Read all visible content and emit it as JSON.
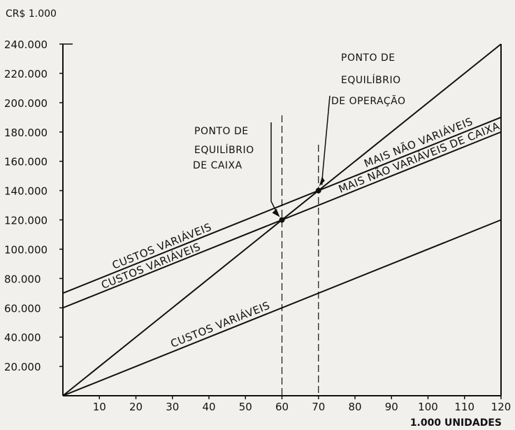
{
  "chart_data": {
    "type": "line",
    "ylabel": "CR$ 1.000",
    "xlabel": "1.000 UNIDADES",
    "xlim": [
      0,
      120
    ],
    "ylim": [
      0,
      240000
    ],
    "x_ticks": [
      10,
      20,
      30,
      40,
      50,
      60,
      70,
      80,
      90,
      100,
      110,
      120
    ],
    "y_tick_values": [
      20000,
      40000,
      60000,
      80000,
      100000,
      120000,
      140000,
      160000,
      180000,
      200000,
      220000,
      240000
    ],
    "y_tick_labels": [
      "20.000",
      "40.000",
      "60.000",
      "80.000",
      "100.000",
      "120.000",
      "140.000",
      "160.000",
      "180.000",
      "200.000",
      "220.000",
      "240.000"
    ],
    "grid": false,
    "series": [
      {
        "x": [
          0,
          120
        ],
        "y": [
          0,
          240000
        ]
      },
      {
        "name": "CUSTOS VARIÁVEIS MAIS NÃO VARIÁVEIS",
        "x": [
          0,
          120
        ],
        "y": [
          70000,
          190000
        ]
      },
      {
        "name": "CUSTOS VARIÁVEIS MAIS NÃO VARIÁVEIS DE CAIXA",
        "x": [
          0,
          120
        ],
        "y": [
          60000,
          180000
        ]
      },
      {
        "name": "CUSTOS VARIÁVEIS",
        "x": [
          0,
          120
        ],
        "y": [
          0,
          120000
        ]
      }
    ],
    "line_labels": {
      "top_left": "CUSTOS VARIÁVEIS",
      "top_right": "MAIS NÃO VARIÁVEIS",
      "middle_left": "CUSTOS VARIÁVEIS",
      "middle_right": "MAIS NÃO VARIÁVEIS DE CAIXA",
      "bottom": "CUSTOS VARIÁVEIS"
    },
    "annotations": [
      {
        "lines": [
          "PONTO DE",
          "EQUILÍBRIO",
          "DE OPERAÇÃO"
        ],
        "x": 70,
        "y": 140000
      },
      {
        "lines": [
          "PONTO DE",
          "EQUILÍBRIO",
          "DE CAIXA"
        ],
        "x": 60,
        "y": 120000
      }
    ],
    "color": "#111111",
    "background": "#f2f0ec"
  }
}
